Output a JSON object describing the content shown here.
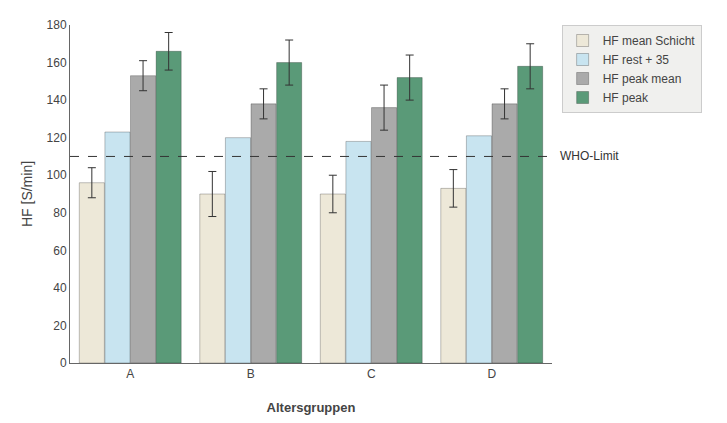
{
  "chart_data": {
    "type": "bar",
    "categories": [
      "A",
      "B",
      "C",
      "D"
    ],
    "series": [
      {
        "name": "HF mean Schicht",
        "color": "#ede8d8",
        "values": [
          96,
          90,
          90,
          93
        ],
        "errors": [
          8,
          12,
          10,
          10
        ]
      },
      {
        "name": "HF rest + 35",
        "color": "#c8e4f0",
        "values": [
          123,
          120,
          118,
          121
        ],
        "errors": [
          0,
          0,
          0,
          0
        ]
      },
      {
        "name": "HF peak mean",
        "color": "#aaaaaa",
        "values": [
          153,
          138,
          136,
          138
        ],
        "errors": [
          8,
          8,
          12,
          8
        ]
      },
      {
        "name": "HF peak",
        "color": "#5a9a78",
        "values": [
          166,
          160,
          152,
          158
        ],
        "errors": [
          10,
          12,
          12,
          12
        ]
      }
    ],
    "xlabel": "Altersgruppen",
    "ylabel": "HF [S/min]",
    "ylim": [
      0,
      180
    ],
    "yticks": [
      0,
      20,
      40,
      60,
      80,
      100,
      120,
      140,
      160,
      180
    ],
    "reference_line": {
      "value": 110,
      "label": "WHO-Limit"
    },
    "grid": false,
    "legend": "right"
  }
}
